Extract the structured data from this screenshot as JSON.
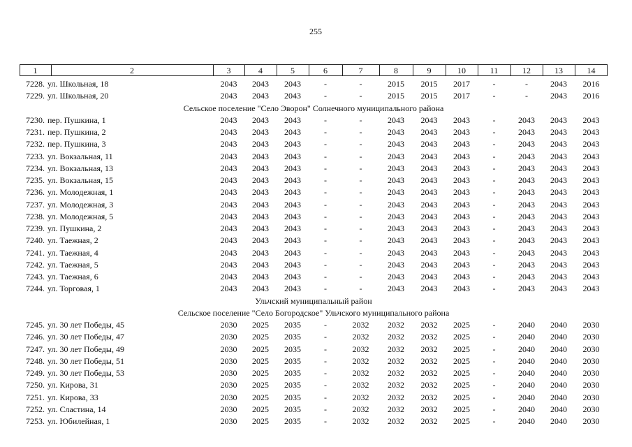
{
  "page_number": "255",
  "table": {
    "header": [
      "1",
      "2",
      "3",
      "4",
      "5",
      "6",
      "7",
      "8",
      "9",
      "10",
      "11",
      "12",
      "13",
      "14"
    ],
    "rows": [
      {
        "number": "7228.",
        "address": "ул. Школьная, 18",
        "cells": [
          "2043",
          "2043",
          "2043",
          "-",
          "-",
          "2015",
          "2015",
          "2017",
          "-",
          "-",
          "2043",
          "2016"
        ]
      },
      {
        "number": "7229.",
        "address": "ул. Школьная, 20",
        "cells": [
          "2043",
          "2043",
          "2043",
          "-",
          "-",
          "2015",
          "2015",
          "2017",
          "-",
          "-",
          "2043",
          "2016"
        ]
      },
      {
        "section": "Сельское поселение \"Село Эворон\" Солнечного муниципального района"
      },
      {
        "number": "7230.",
        "address": "пер. Пушкина, 1",
        "cells": [
          "2043",
          "2043",
          "2043",
          "-",
          "-",
          "2043",
          "2043",
          "2043",
          "-",
          "2043",
          "2043",
          "2043"
        ]
      },
      {
        "number": "7231.",
        "address": "пер. Пушкина, 2",
        "cells": [
          "2043",
          "2043",
          "2043",
          "-",
          "-",
          "2043",
          "2043",
          "2043",
          "-",
          "2043",
          "2043",
          "2043"
        ]
      },
      {
        "number": "7232.",
        "address": "пер. Пушкина, 3",
        "cells": [
          "2043",
          "2043",
          "2043",
          "-",
          "-",
          "2043",
          "2043",
          "2043",
          "-",
          "2043",
          "2043",
          "2043"
        ]
      },
      {
        "number": "7233.",
        "address": "ул. Вокзальная, 11",
        "cells": [
          "2043",
          "2043",
          "2043",
          "-",
          "-",
          "2043",
          "2043",
          "2043",
          "-",
          "2043",
          "2043",
          "2043"
        ]
      },
      {
        "number": "7234.",
        "address": "ул. Вокзальная, 13",
        "cells": [
          "2043",
          "2043",
          "2043",
          "-",
          "-",
          "2043",
          "2043",
          "2043",
          "-",
          "2043",
          "2043",
          "2043"
        ]
      },
      {
        "number": "7235.",
        "address": "ул. Вокзальная, 15",
        "cells": [
          "2043",
          "2043",
          "2043",
          "-",
          "-",
          "2043",
          "2043",
          "2043",
          "-",
          "2043",
          "2043",
          "2043"
        ]
      },
      {
        "number": "7236.",
        "address": "ул. Молодежная, 1",
        "cells": [
          "2043",
          "2043",
          "2043",
          "-",
          "-",
          "2043",
          "2043",
          "2043",
          "-",
          "2043",
          "2043",
          "2043"
        ]
      },
      {
        "number": "7237.",
        "address": "ул. Молодежная, 3",
        "cells": [
          "2043",
          "2043",
          "2043",
          "-",
          "-",
          "2043",
          "2043",
          "2043",
          "-",
          "2043",
          "2043",
          "2043"
        ]
      },
      {
        "number": "7238.",
        "address": "ул. Молодежная, 5",
        "cells": [
          "2043",
          "2043",
          "2043",
          "-",
          "-",
          "2043",
          "2043",
          "2043",
          "-",
          "2043",
          "2043",
          "2043"
        ]
      },
      {
        "number": "7239.",
        "address": "ул. Пушкина, 2",
        "cells": [
          "2043",
          "2043",
          "2043",
          "-",
          "-",
          "2043",
          "2043",
          "2043",
          "-",
          "2043",
          "2043",
          "2043"
        ]
      },
      {
        "number": "7240.",
        "address": "ул. Таежная, 2",
        "cells": [
          "2043",
          "2043",
          "2043",
          "-",
          "-",
          "2043",
          "2043",
          "2043",
          "-",
          "2043",
          "2043",
          "2043"
        ]
      },
      {
        "number": "7241.",
        "address": "ул. Таежная, 4",
        "cells": [
          "2043",
          "2043",
          "2043",
          "-",
          "-",
          "2043",
          "2043",
          "2043",
          "-",
          "2043",
          "2043",
          "2043"
        ]
      },
      {
        "number": "7242.",
        "address": "ул. Таежная, 5",
        "cells": [
          "2043",
          "2043",
          "2043",
          "-",
          "-",
          "2043",
          "2043",
          "2043",
          "-",
          "2043",
          "2043",
          "2043"
        ]
      },
      {
        "number": "7243.",
        "address": "ул. Таежная, 6",
        "cells": [
          "2043",
          "2043",
          "2043",
          "-",
          "-",
          "2043",
          "2043",
          "2043",
          "-",
          "2043",
          "2043",
          "2043"
        ]
      },
      {
        "number": "7244.",
        "address": "ул. Торговая, 1",
        "cells": [
          "2043",
          "2043",
          "2043",
          "-",
          "-",
          "2043",
          "2043",
          "2043",
          "-",
          "2043",
          "2043",
          "2043"
        ]
      },
      {
        "section": "Ульчский муниципальный район"
      },
      {
        "section": "Сельское поселение \"Село Богородское\" Ульчского муниципального района"
      },
      {
        "number": "7245.",
        "address": "ул. 30 лет Победы, 45",
        "cells": [
          "2030",
          "2025",
          "2035",
          "-",
          "2032",
          "2032",
          "2032",
          "2025",
          "-",
          "2040",
          "2040",
          "2030"
        ]
      },
      {
        "number": "7246.",
        "address": "ул. 30 лет Победы, 47",
        "cells": [
          "2030",
          "2025",
          "2035",
          "-",
          "2032",
          "2032",
          "2032",
          "2025",
          "-",
          "2040",
          "2040",
          "2030"
        ]
      },
      {
        "number": "7247.",
        "address": "ул. 30 лет Победы, 49",
        "cells": [
          "2030",
          "2025",
          "2035",
          "-",
          "2032",
          "2032",
          "2032",
          "2025",
          "-",
          "2040",
          "2040",
          "2030"
        ]
      },
      {
        "number": "7248.",
        "address": "ул. 30 лет Победы, 51",
        "cells": [
          "2030",
          "2025",
          "2035",
          "-",
          "2032",
          "2032",
          "2032",
          "2025",
          "-",
          "2040",
          "2040",
          "2030"
        ]
      },
      {
        "number": "7249.",
        "address": "ул. 30 лет Победы, 53",
        "cells": [
          "2030",
          "2025",
          "2035",
          "-",
          "2032",
          "2032",
          "2032",
          "2025",
          "-",
          "2040",
          "2040",
          "2030"
        ]
      },
      {
        "number": "7250.",
        "address": "ул. Кирова, 31",
        "cells": [
          "2030",
          "2025",
          "2035",
          "-",
          "2032",
          "2032",
          "2032",
          "2025",
          "-",
          "2040",
          "2040",
          "2030"
        ]
      },
      {
        "number": "7251.",
        "address": "ул. Кирова, 33",
        "cells": [
          "2030",
          "2025",
          "2035",
          "-",
          "2032",
          "2032",
          "2032",
          "2025",
          "-",
          "2040",
          "2040",
          "2030"
        ]
      },
      {
        "number": "7252.",
        "address": "ул. Сластина, 14",
        "cells": [
          "2030",
          "2025",
          "2035",
          "-",
          "2032",
          "2032",
          "2032",
          "2025",
          "-",
          "2040",
          "2040",
          "2030"
        ]
      },
      {
        "number": "7253.",
        "address": "ул. Юбилейная, 1",
        "cells": [
          "2030",
          "2025",
          "2035",
          "-",
          "2032",
          "2032",
          "2032",
          "2025",
          "-",
          "2040",
          "2040",
          "2030"
        ]
      }
    ]
  }
}
